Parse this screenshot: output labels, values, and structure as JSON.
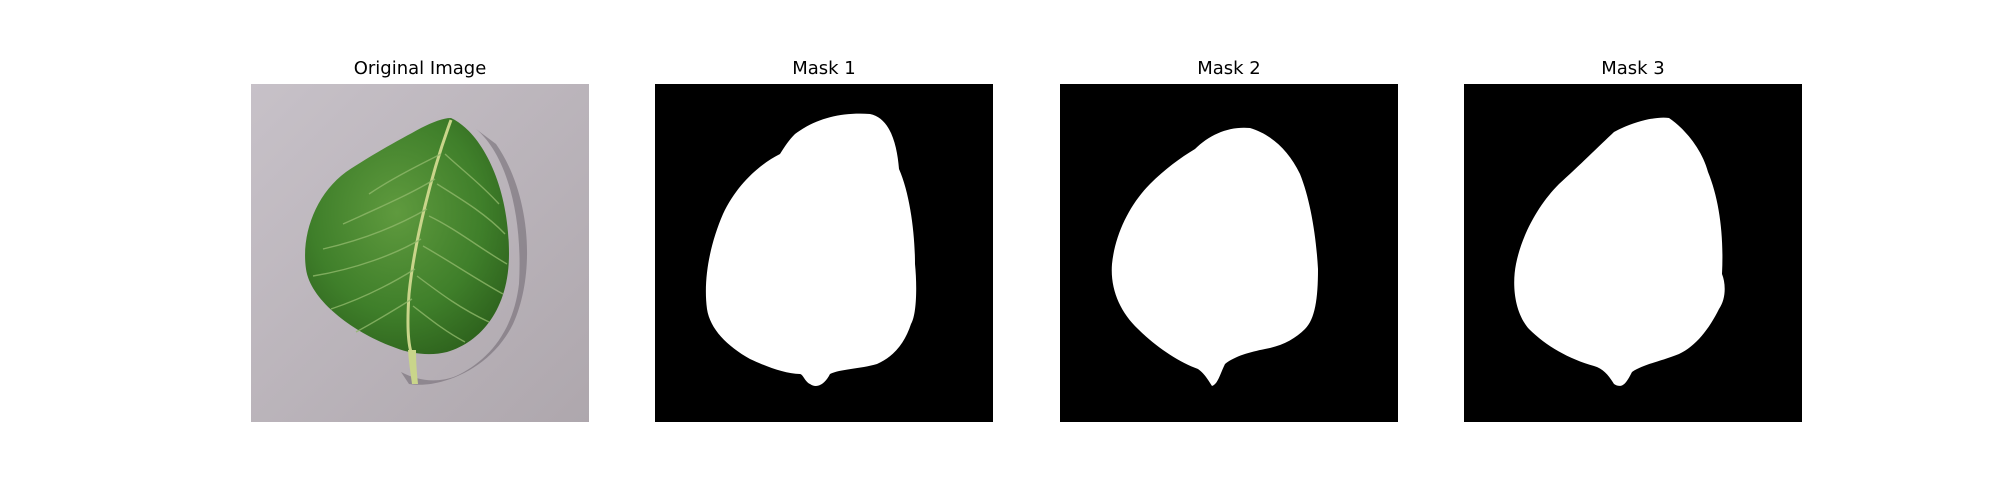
{
  "figure": {
    "panels": [
      {
        "title": "Original Image"
      },
      {
        "title": "Mask 1"
      },
      {
        "title": "Mask 2"
      },
      {
        "title": "Mask 3"
      }
    ]
  },
  "colors": {
    "background": "#ffffff",
    "mask_foreground": "#ffffff",
    "mask_background": "#000000",
    "surface": "#bdb7be",
    "leaf_dark": "#2f6b1f",
    "leaf_light": "#5f9a3e",
    "vein": "#c9d58a"
  }
}
